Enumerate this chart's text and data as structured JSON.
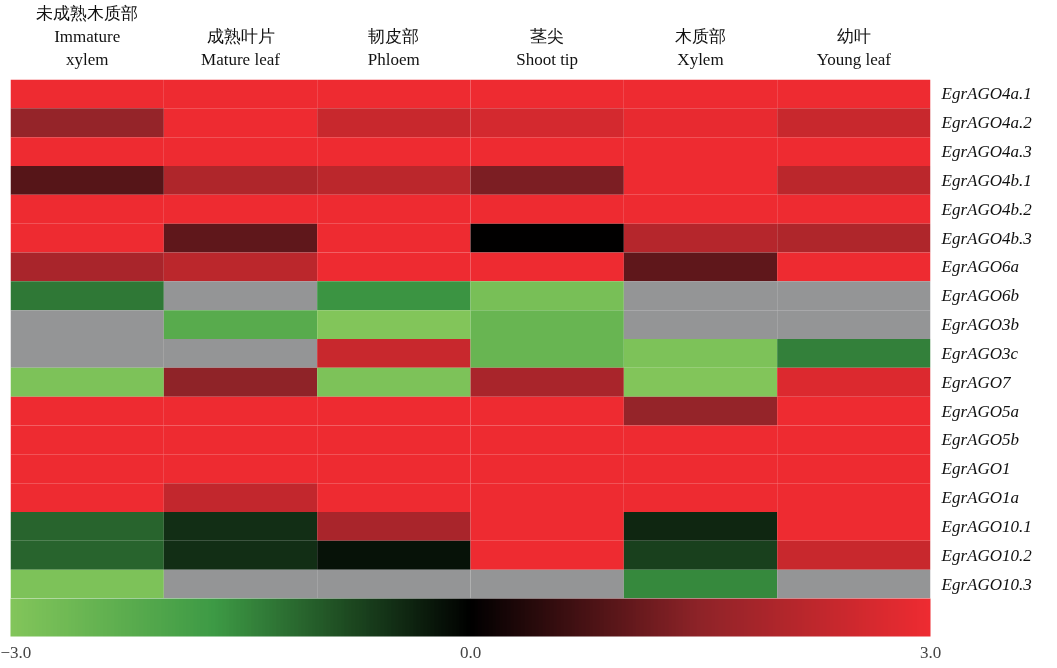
{
  "chart_data": {
    "type": "heatmap",
    "categories": [
      "未成熟木质部\nImmature\nxylem",
      "成熟叶片\nMature leaf",
      "韧皮部\nPhloem",
      "茎尖\nShoot tip",
      "木质部\nXylem",
      "幼叶\nYoung leaf"
    ],
    "y_categories": [
      "EgrAGO4a.1",
      "EgrAGO4a.2",
      "EgrAGO4a.3",
      "EgrAGO4b.1",
      "EgrAGO4b.2",
      "EgrAGO4b.3",
      "EgrAGO6a",
      "EgrAGO6b",
      "EgrAGO3b",
      "EgrAGO3c",
      "EgrAGO7",
      "EgrAGO5a",
      "EgrAGO5b",
      "EgrAGO1",
      "EgrAGO1a",
      "EgrAGO10.1",
      "EgrAGO10.2",
      "EgrAGO10.3"
    ],
    "cells": [
      [
        3.0,
        3.0,
        3.0,
        3.0,
        3.0,
        3.0
      ],
      [
        1.6,
        3.0,
        2.4,
        2.6,
        2.9,
        2.4
      ],
      [
        3.0,
        3.0,
        3.0,
        3.0,
        3.0,
        3.0
      ],
      [
        0.9,
        2.0,
        2.2,
        1.3,
        3.0,
        2.2
      ],
      [
        3.0,
        3.0,
        3.0,
        3.0,
        3.0,
        3.0
      ],
      [
        3.0,
        1.0,
        3.0,
        0.0,
        2.1,
        2.0
      ],
      [
        1.9,
        2.2,
        3.0,
        3.0,
        1.0,
        3.0
      ],
      [
        -1.3,
        null,
        -1.6,
        -2.8,
        null,
        null
      ],
      [
        null,
        -2.2,
        -3.0,
        -2.5,
        null,
        null
      ],
      [
        null,
        null,
        2.4,
        -2.5,
        -2.9,
        -1.4
      ],
      [
        -2.9,
        1.5,
        -2.9,
        1.9,
        -3.0,
        2.7
      ],
      [
        3.0,
        3.0,
        3.0,
        3.0,
        1.6,
        3.0
      ],
      [
        3.0,
        3.0,
        3.0,
        3.0,
        3.0,
        3.0
      ],
      [
        3.0,
        3.0,
        3.0,
        3.0,
        3.0,
        3.0
      ],
      [
        3.0,
        2.3,
        3.0,
        3.0,
        3.0,
        3.0
      ],
      [
        -1.1,
        -0.5,
        1.9,
        3.0,
        -0.4,
        3.0
      ],
      [
        -1.1,
        -0.5,
        -0.2,
        3.0,
        -0.7,
        2.4
      ],
      [
        -2.9,
        null,
        null,
        null,
        -1.5,
        null
      ]
    ],
    "clim": [
      -3.0,
      3.0
    ],
    "cticks": [
      {
        "value": -3.0,
        "label": "−3.0"
      },
      {
        "value": 0.0,
        "label": "0.0"
      },
      {
        "value": 3.0,
        "label": "3.0"
      }
    ]
  }
}
